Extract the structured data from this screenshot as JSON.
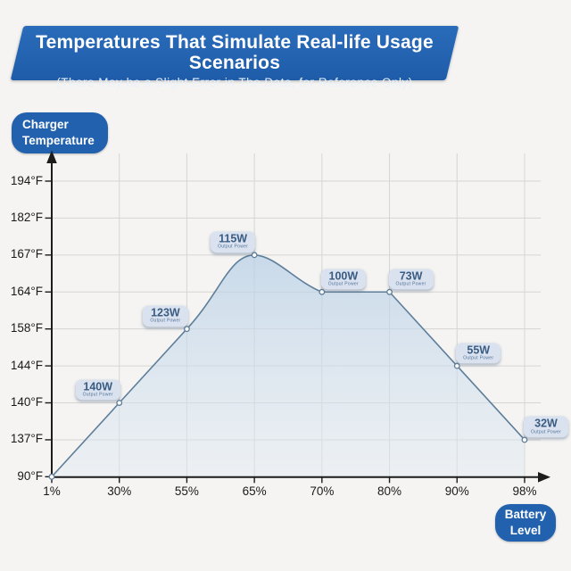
{
  "banner": {
    "title": "Temperatures That Simulate Real-life Usage Scenarios",
    "subtitle": "(There May be a Slight Error in The Data, for Reference Only)"
  },
  "y_axis_badge": {
    "line1": "Charger",
    "line2": "Temperature"
  },
  "x_axis_badge": {
    "line1": "Battery",
    "line2": "Level"
  },
  "chart_data": {
    "type": "area",
    "title": "Temperatures That Simulate Real-life Usage Scenarios",
    "xlabel": "Battery Level",
    "ylabel": "Charger Temperature",
    "grid": true,
    "x_categories": [
      "1%",
      "30%",
      "55%",
      "65%",
      "70%",
      "80%",
      "90%",
      "98%"
    ],
    "y_tick_labels": [
      "194°F",
      "182°F",
      "167°F",
      "164°F",
      "158°F",
      "144°F",
      "140°F",
      "137°F",
      "90°F"
    ],
    "point_sublabel": "Output Power",
    "points": [
      {
        "battery_level": "1%",
        "temperature": "90°F"
      },
      {
        "battery_level": "30%",
        "temperature": "140°F",
        "output_power": "140W",
        "label_side": "left"
      },
      {
        "battery_level": "55%",
        "temperature": "158°F",
        "output_power": "123W",
        "label_side": "left"
      },
      {
        "battery_level": "65%",
        "temperature": "167°F",
        "output_power": "115W",
        "label_side": "left"
      },
      {
        "battery_level": "70%",
        "temperature": "164°F",
        "output_power": "100W",
        "label_side": "right"
      },
      {
        "battery_level": "80%",
        "temperature": "164°F",
        "output_power": "73W",
        "label_side": "right"
      },
      {
        "battery_level": "90%",
        "temperature": "144°F",
        "output_power": "55W",
        "label_side": "right"
      },
      {
        "battery_level": "98%",
        "temperature": "137°F",
        "output_power": "32W",
        "label_side": "right"
      }
    ],
    "colors": {
      "banner_blue": "#2264b2",
      "badge_blue": "#2161ae",
      "line": "#5e7e9a",
      "marker_fill": "#ffffff",
      "area_top": "#b7cfe6",
      "area_bottom": "#e0eaf4",
      "grid": "#d5d5d3",
      "axis": "#1c1c1c",
      "label_pill_bg": "#d9e2ee",
      "label_pill_text": "#3a5c82",
      "background": "#f5f4f2"
    }
  }
}
